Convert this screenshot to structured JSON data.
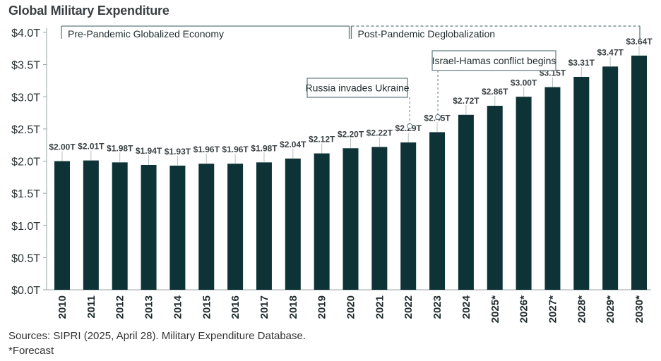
{
  "chart_data": {
    "type": "bar",
    "title": "Global Military Expenditure",
    "categories": [
      "2010",
      "2011",
      "2012",
      "2013",
      "2014",
      "2015",
      "2016",
      "2017",
      "2018",
      "2019",
      "2020",
      "2021",
      "2022",
      "2023",
      "2024",
      "2025*",
      "2026*",
      "2027*",
      "2028*",
      "2029*",
      "2030*"
    ],
    "values": [
      2.0,
      2.01,
      1.98,
      1.94,
      1.93,
      1.96,
      1.96,
      1.98,
      2.04,
      2.12,
      2.2,
      2.22,
      2.29,
      2.45,
      2.72,
      2.86,
      3.0,
      3.15,
      3.31,
      3.47,
      3.64
    ],
    "value_labels": [
      "$2.00T",
      "$2.01T",
      "$1.98T",
      "$1.94T",
      "$1.93T",
      "$1.96T",
      "$1.96T",
      "$1.98T",
      "$2.04T",
      "$2.12T",
      "$2.20T",
      "$2.22T",
      "$2.29T",
      "$2.45T",
      "$2.72T",
      "$2.86T",
      "$3.00T",
      "$3.15T",
      "$3.31T",
      "$3.47T",
      "$3.64T"
    ],
    "y_ticks": [
      0,
      0.5,
      1.0,
      1.5,
      2.0,
      2.5,
      3.0,
      3.5,
      4.0
    ],
    "y_tick_labels": [
      "$0.0T",
      "$0.5T",
      "$1.0T",
      "$1.5T",
      "$2.0T",
      "$2.5T",
      "$3.0T",
      "$3.5T",
      "$4.0T"
    ],
    "ylim": [
      0,
      4.0
    ],
    "grid": false,
    "bar_color": "#0e3336",
    "periods": [
      {
        "label": "Pre-Pandemic Globalized Economy",
        "from": "2010",
        "to": "2020"
      },
      {
        "label": "Post-Pandemic Deglobalization",
        "from": "2020",
        "to": "2030*"
      }
    ],
    "annotations": [
      {
        "text": "Russia invades Ukraine",
        "category": "2022"
      },
      {
        "text": "Israel-Hamas conflict begins",
        "category": "2023"
      }
    ]
  },
  "source_note": "Sources: SIPRI (2025, April 28). Military Expenditure Database.",
  "forecast_note": "*Forecast"
}
